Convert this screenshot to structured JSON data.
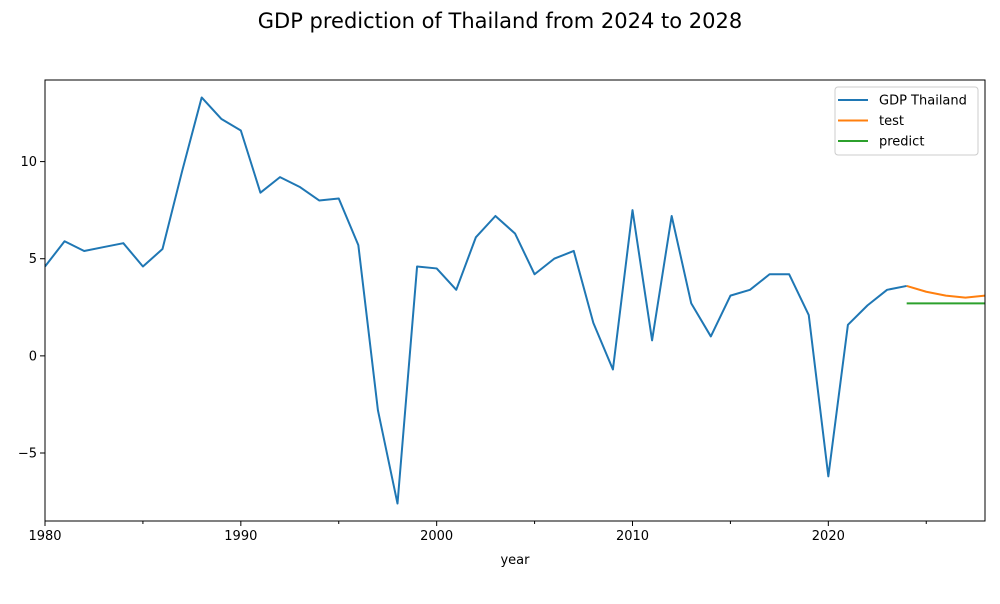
{
  "chart_data": {
    "type": "line",
    "title": "GDP prediction of Thailand from 2024 to 2028",
    "xlabel": "year",
    "ylabel": "",
    "xlim": [
      1980,
      2028
    ],
    "ylim": [
      -8.5,
      14.2
    ],
    "x_ticks": [
      1980,
      1990,
      2000,
      2010,
      2020
    ],
    "x_minor_ticks": [
      1985,
      1995,
      2005,
      2015,
      2025
    ],
    "y_ticks": [
      -5,
      0,
      5,
      10
    ],
    "grid": false,
    "legend_position": "top-right",
    "series": [
      {
        "name": "GDP Thailand",
        "color": "#1f77b4",
        "x": [
          1980,
          1981,
          1982,
          1983,
          1984,
          1985,
          1986,
          1987,
          1988,
          1989,
          1990,
          1991,
          1992,
          1993,
          1994,
          1995,
          1996,
          1997,
          1998,
          1999,
          2000,
          2001,
          2002,
          2003,
          2004,
          2005,
          2006,
          2007,
          2008,
          2009,
          2010,
          2011,
          2012,
          2013,
          2014,
          2015,
          2016,
          2017,
          2018,
          2019,
          2020,
          2021,
          2022,
          2023,
          2024
        ],
        "values": [
          4.6,
          5.9,
          5.4,
          5.6,
          5.8,
          4.6,
          5.5,
          9.5,
          13.3,
          12.2,
          11.6,
          8.4,
          9.2,
          8.7,
          8.0,
          8.1,
          5.7,
          -2.8,
          -7.6,
          4.6,
          4.5,
          3.4,
          6.1,
          7.2,
          6.3,
          4.2,
          5.0,
          5.4,
          1.7,
          -0.7,
          7.5,
          0.8,
          7.2,
          2.7,
          1.0,
          3.1,
          3.4,
          4.2,
          4.2,
          2.1,
          -6.2,
          1.6,
          2.6,
          3.4,
          3.6
        ]
      },
      {
        "name": "test",
        "color": "#ff7f0e",
        "x": [
          2024,
          2025,
          2026,
          2027,
          2028
        ],
        "values": [
          3.6,
          3.3,
          3.1,
          3.0,
          3.1
        ]
      },
      {
        "name": "predict",
        "color": "#2ca02c",
        "x": [
          2024,
          2025,
          2026,
          2027,
          2028
        ],
        "values": [
          2.7,
          2.7,
          2.7,
          2.7,
          2.7
        ]
      }
    ]
  }
}
